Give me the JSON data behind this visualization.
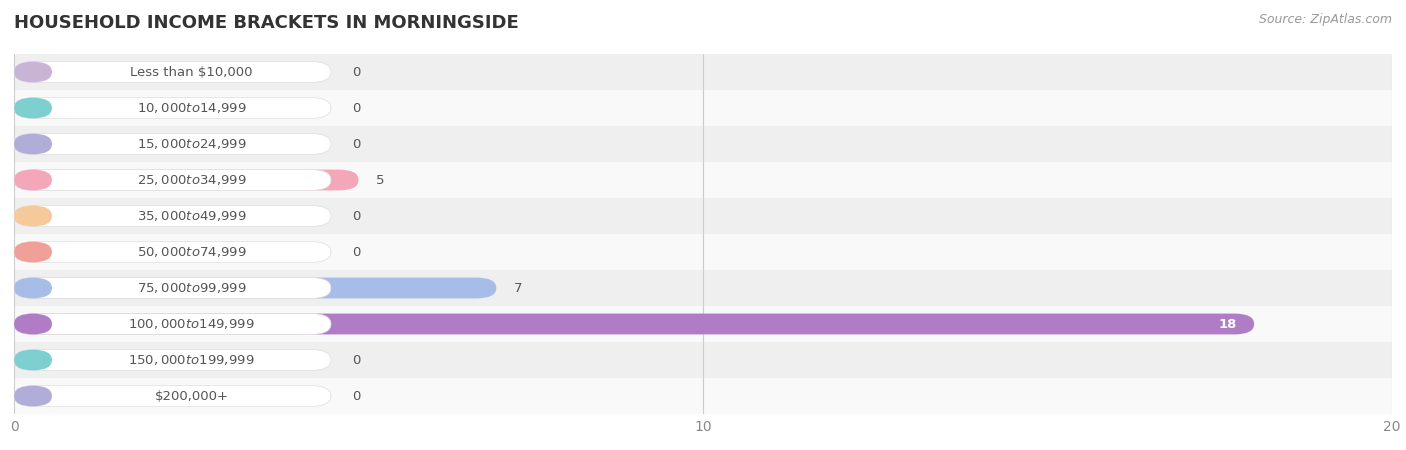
{
  "title": "HOUSEHOLD INCOME BRACKETS IN MORNINGSIDE",
  "source": "Source: ZipAtlas.com",
  "categories": [
    "Less than $10,000",
    "$10,000 to $14,999",
    "$15,000 to $24,999",
    "$25,000 to $34,999",
    "$35,000 to $49,999",
    "$50,000 to $74,999",
    "$75,000 to $99,999",
    "$100,000 to $149,999",
    "$150,000 to $199,999",
    "$200,000+"
  ],
  "values": [
    0,
    0,
    0,
    5,
    0,
    0,
    7,
    18,
    0,
    0
  ],
  "bar_colors": [
    "#c9b4d6",
    "#7ecfcf",
    "#b0aed8",
    "#f4a7b9",
    "#f5c99a",
    "#f0a098",
    "#a8bce8",
    "#b07cc6",
    "#7ecfcf",
    "#b0aed8"
  ],
  "xlim": [
    0,
    20
  ],
  "xticks": [
    0,
    10,
    20
  ],
  "row_bg_even": "#efefef",
  "row_bg_odd": "#f9f9f9",
  "bar_height": 0.58,
  "label_fontsize": 9.5,
  "title_fontsize": 13,
  "source_fontsize": 9
}
